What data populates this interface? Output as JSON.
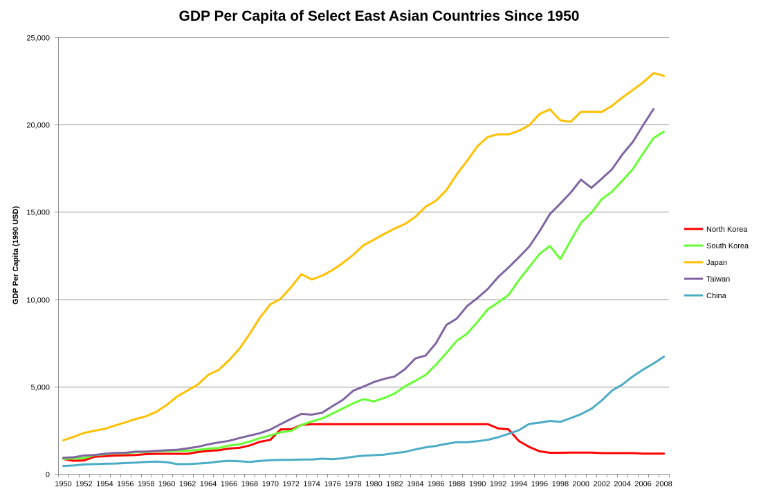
{
  "chart_data": {
    "type": "line",
    "title": "GDP Per Capita of Select East Asian Countries Since 1950",
    "xlabel": "",
    "ylabel": "GDP Per Capita  (1990 USD)",
    "ylim": [
      0,
      25000
    ],
    "yticks": [
      "0",
      "5,000",
      "10,000",
      "15,000",
      "20,000",
      "25,000"
    ],
    "xlim": [
      1950,
      2008
    ],
    "x": [
      1950,
      1951,
      1952,
      1953,
      1954,
      1955,
      1956,
      1957,
      1958,
      1959,
      1960,
      1961,
      1962,
      1963,
      1964,
      1965,
      1966,
      1967,
      1968,
      1969,
      1970,
      1971,
      1972,
      1973,
      1974,
      1975,
      1976,
      1977,
      1978,
      1979,
      1980,
      1981,
      1982,
      1983,
      1984,
      1985,
      1986,
      1987,
      1988,
      1989,
      1990,
      1991,
      1992,
      1993,
      1994,
      1995,
      1996,
      1997,
      1998,
      1999,
      2000,
      2001,
      2002,
      2003,
      2004,
      2005,
      2006,
      2007,
      2008
    ],
    "xtick_labels": [
      "1950",
      "1952",
      "1954",
      "1956",
      "1958",
      "1960",
      "1962",
      "1964",
      "1966",
      "1968",
      "1970",
      "1972",
      "1974",
      "1976",
      "1978",
      "1980",
      "1982",
      "1984",
      "1986",
      "1988",
      "1990",
      "1992",
      "1994",
      "1996",
      "1998",
      "2000",
      "2002",
      "2004",
      "2006",
      "2008"
    ],
    "grid": true,
    "legend_position": "right",
    "series": [
      {
        "name": "North Korea",
        "color": "#ff0000",
        "values": [
          850,
          750,
          770,
          980,
          1010,
          1050,
          1060,
          1080,
          1130,
          1150,
          1150,
          1150,
          1150,
          1250,
          1320,
          1350,
          1450,
          1490,
          1630,
          1840,
          1950,
          2550,
          2550,
          2800,
          2850,
          2850,
          2850,
          2850,
          2850,
          2850,
          2850,
          2850,
          2850,
          2850,
          2850,
          2850,
          2850,
          2850,
          2850,
          2850,
          2850,
          2850,
          2600,
          2550,
          1880,
          1540,
          1290,
          1210,
          1210,
          1220,
          1220,
          1220,
          1190,
          1190,
          1190,
          1190,
          1160,
          1160,
          1160
        ]
      },
      {
        "name": "South Korea",
        "color": "#66ff33",
        "values": [
          850,
          880,
          900,
          1070,
          1120,
          1180,
          1180,
          1240,
          1250,
          1300,
          1300,
          1320,
          1320,
          1370,
          1450,
          1480,
          1620,
          1690,
          1850,
          2050,
          2200,
          2380,
          2460,
          2800,
          3000,
          3170,
          3450,
          3750,
          4040,
          4280,
          4150,
          4350,
          4600,
          5010,
          5330,
          5670,
          6260,
          6920,
          7620,
          8030,
          8700,
          9430,
          9820,
          10240,
          11090,
          11850,
          12600,
          13050,
          12300,
          13350,
          14380,
          14950,
          15730,
          16170,
          16800,
          17450,
          18350,
          19230,
          19600
        ]
      },
      {
        "name": "Japan",
        "color": "#ffc000",
        "values": [
          1920,
          2120,
          2340,
          2470,
          2580,
          2770,
          2950,
          3140,
          3300,
          3560,
          3950,
          4430,
          4780,
          5120,
          5670,
          5950,
          6500,
          7150,
          8020,
          8950,
          9710,
          10030,
          10690,
          11440,
          11130,
          11350,
          11670,
          12080,
          12540,
          13100,
          13410,
          13740,
          14050,
          14310,
          14720,
          15300,
          15650,
          16250,
          17150,
          17930,
          18760,
          19300,
          19450,
          19440,
          19650,
          19970,
          20610,
          20880,
          20250,
          20160,
          20740,
          20740,
          20730,
          21080,
          21560,
          21980,
          22420,
          22950,
          22800
        ]
      },
      {
        "name": "Taiwan",
        "color": "#8064a2",
        "values": [
          920,
          950,
          1050,
          1080,
          1150,
          1200,
          1210,
          1270,
          1280,
          1320,
          1350,
          1380,
          1460,
          1550,
          1690,
          1800,
          1890,
          2050,
          2190,
          2330,
          2540,
          2850,
          3150,
          3430,
          3390,
          3500,
          3880,
          4240,
          4760,
          5000,
          5260,
          5440,
          5580,
          6000,
          6610,
          6780,
          7490,
          8530,
          8890,
          9610,
          10070,
          10590,
          11270,
          11820,
          12400,
          13020,
          13900,
          14880,
          15480,
          16100,
          16850,
          16380,
          16900,
          17450,
          18300,
          19000,
          19970,
          20890,
          null
        ]
      },
      {
        "name": "China",
        "color": "#4bacc6",
        "values": [
          450,
          480,
          540,
          560,
          580,
          590,
          620,
          640,
          680,
          700,
          670,
          560,
          560,
          590,
          630,
          700,
          750,
          720,
          680,
          740,
          780,
          800,
          800,
          820,
          820,
          870,
          840,
          890,
          980,
          1040,
          1070,
          1100,
          1190,
          1260,
          1400,
          1520,
          1600,
          1720,
          1820,
          1810,
          1870,
          1950,
          2100,
          2290,
          2500,
          2860,
          2930,
          3030,
          2980,
          3190,
          3420,
          3730,
          4200,
          4770,
          5120,
          5580,
          5970,
          6320,
          6710
        ]
      }
    ]
  }
}
